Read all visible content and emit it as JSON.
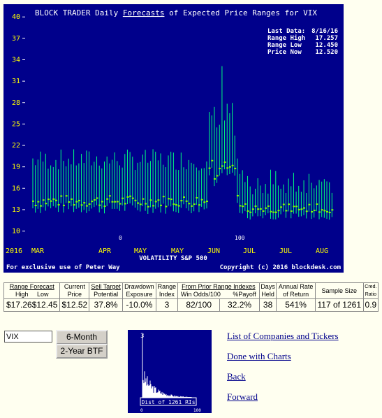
{
  "chart": {
    "title_prefix": "BLOCK TRADER Daily ",
    "title_link": "Forecasts",
    "title_suffix": " of Expected Price Ranges for  VIX",
    "info": {
      "last_data_label": "Last Data:",
      "last_data": "8/16/16",
      "range_high_label": "Range High",
      "range_high": "17.257",
      "range_low_label": "Range Low",
      "range_low": "12.450",
      "price_now_label": "Price Now",
      "price_now": "12.520"
    },
    "x_axis_title": "VOLATILITY S&P 500",
    "footer_left": "For exclusive use of Peter Way",
    "footer_right": "Copyright (c) 2016 blockdesk.com",
    "marker_left": "0",
    "marker_right": "100",
    "colors": {
      "background": "#00008b",
      "range_line": "#00ff7f",
      "axis_labels": "#ffff00",
      "text": "#ffffff",
      "price_marker": "#7fff00"
    }
  },
  "chart_data": {
    "type": "range",
    "ylim": [
      8,
      41
    ],
    "yticks": [
      10,
      13,
      16,
      19,
      22,
      25,
      28,
      31,
      34,
      37,
      40
    ],
    "xticks": [
      "2016",
      "MAR",
      "APR",
      "MAY",
      "MAY",
      "JUN",
      "JUL",
      "JUL",
      "AUG"
    ]
  },
  "table": {
    "headers": {
      "range_forecast": "Range Forecast",
      "high": "High",
      "low": "Low",
      "current": "Current",
      "price": "Price",
      "sell_target": "Sell Target",
      "potential": "Potential",
      "drawdown": "Drawdown",
      "exposure": "Exposure",
      "range": "Range",
      "index": "Index",
      "from_prior": "From Prior Range Indexes",
      "win_odds": "Win Odds/100",
      "pct_payoff": "%Payoff",
      "days": "Days",
      "held": "Held",
      "annual_rate": "Annual Rate",
      "of_return": "of Return",
      "sample_size": "Sample Size",
      "cred": "Cred.",
      "ratio": "Ratio"
    },
    "values": {
      "high": "$17.26",
      "low": "$12.45",
      "current_price": "$12.52",
      "sell_target": "37.8%",
      "drawdown": "-10.0%",
      "range_index": "3",
      "win_odds": "82/100",
      "payoff": "32.2%",
      "days_held": "38",
      "annual_return": "541%",
      "sample_size": "117 of 1261",
      "cred_ratio": "0.9"
    }
  },
  "controls": {
    "ticker_value": "VIX",
    "btn_6month": "6-Month BTF",
    "btn_2year": "2-Year BTF"
  },
  "dist": {
    "top_value": "3",
    "label": "Dist of 1261 RIs",
    "axis_min": "0",
    "axis_max": "100"
  },
  "links": {
    "list": "List of Companies and Tickers",
    "done": "Done with Charts",
    "back": "Back",
    "forward": "Forward"
  }
}
